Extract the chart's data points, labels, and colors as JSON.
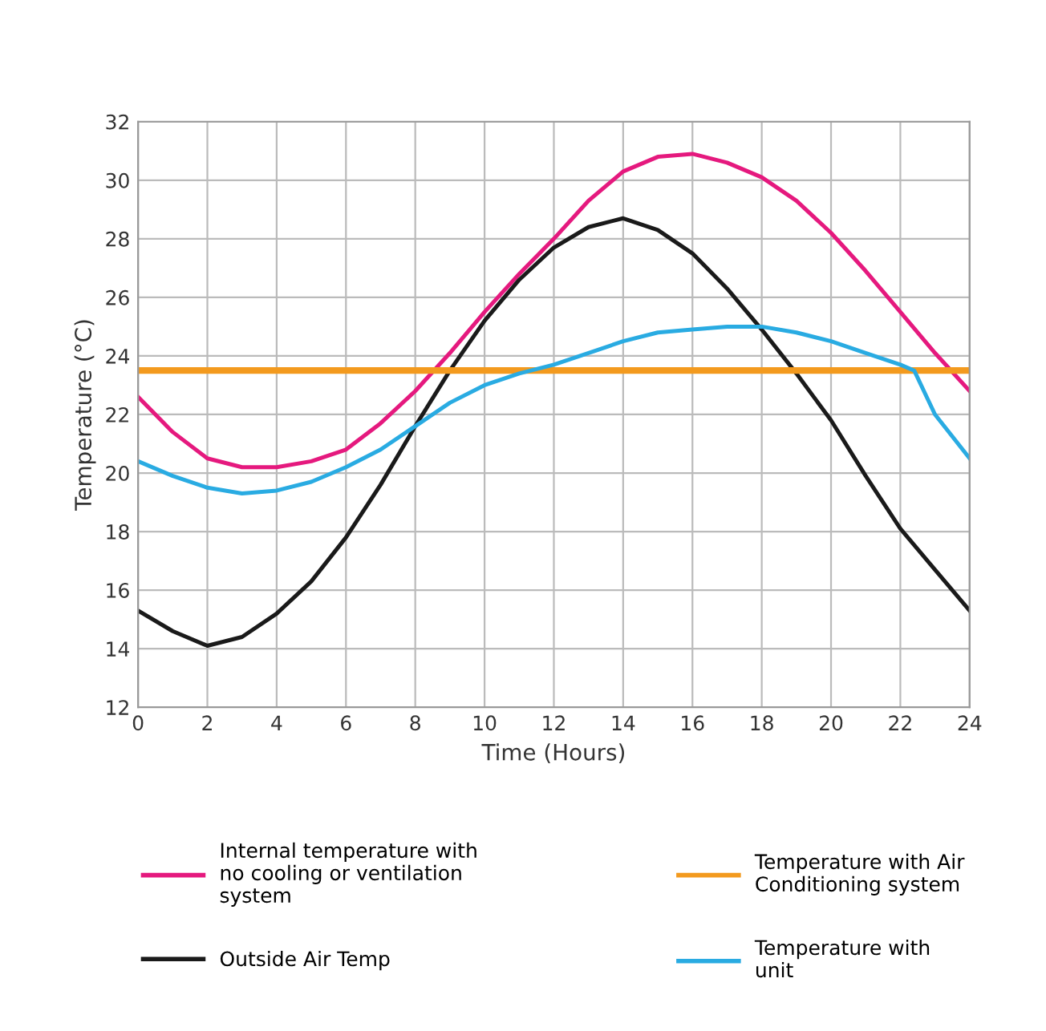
{
  "chart_data": {
    "type": "line",
    "xlabel": "Time (Hours)",
    "ylabel": "Temperature (°C)",
    "xlim": [
      0,
      24
    ],
    "xticks": [
      0,
      2,
      4,
      6,
      8,
      10,
      12,
      14,
      16,
      18,
      20,
      22,
      24
    ],
    "ylim": [
      12,
      32
    ],
    "yticks": [
      12,
      14,
      16,
      18,
      20,
      22,
      24,
      26,
      28,
      30,
      32
    ],
    "grid": true,
    "legend": "bottom",
    "marker": "none",
    "line_style": "solid",
    "series": [
      {
        "name": "Internal temperature with\nno cooling or ventilation\nsystem",
        "color": "#e5197e",
        "x": [
          0,
          1,
          2,
          3,
          4,
          5,
          6,
          7,
          8,
          9,
          10,
          11,
          12,
          13,
          14,
          15,
          16,
          17,
          18,
          19,
          20,
          21,
          22,
          23,
          24
        ],
        "values": [
          22.6,
          21.4,
          20.5,
          20.2,
          20.2,
          20.4,
          20.8,
          21.7,
          22.8,
          24.1,
          25.5,
          26.8,
          28.0,
          29.3,
          30.3,
          30.8,
          30.9,
          30.6,
          30.1,
          29.3,
          28.2,
          26.9,
          25.5,
          24.1,
          22.8
        ]
      },
      {
        "name": "Outside Air Temp",
        "color": "#1a1a1a",
        "x": [
          0,
          1,
          2,
          3,
          4,
          5,
          6,
          7,
          8,
          9,
          10,
          11,
          12,
          13,
          14,
          15,
          16,
          17,
          18,
          19,
          20,
          21,
          22,
          23,
          24
        ],
        "values": [
          15.3,
          14.6,
          14.1,
          14.4,
          15.2,
          16.3,
          17.8,
          19.6,
          21.6,
          23.5,
          25.2,
          26.6,
          27.7,
          28.4,
          28.7,
          28.3,
          27.5,
          26.3,
          24.9,
          23.4,
          21.8,
          19.9,
          18.1,
          16.7,
          15.3
        ]
      },
      {
        "name": "Temperature with Air\nConditioning system",
        "color": "#f39a1e",
        "x": [
          0,
          24
        ],
        "values": [
          23.5,
          23.5
        ]
      },
      {
        "name": "Temperature with\nunit",
        "color": "#29abe2",
        "x": [
          0,
          1,
          2,
          3,
          4,
          5,
          6,
          7,
          8,
          9,
          10,
          11,
          12,
          13,
          14,
          15,
          16,
          17,
          18,
          19,
          20,
          21,
          22,
          22.4,
          22.8,
          23,
          24
        ],
        "values": [
          20.4,
          19.9,
          19.5,
          19.3,
          19.4,
          19.7,
          20.2,
          20.8,
          21.6,
          22.4,
          23.0,
          23.4,
          23.7,
          24.1,
          24.5,
          24.8,
          24.9,
          25.0,
          25.0,
          24.8,
          24.5,
          24.1,
          23.7,
          23.5,
          22.5,
          22.0,
          20.5
        ]
      }
    ]
  }
}
